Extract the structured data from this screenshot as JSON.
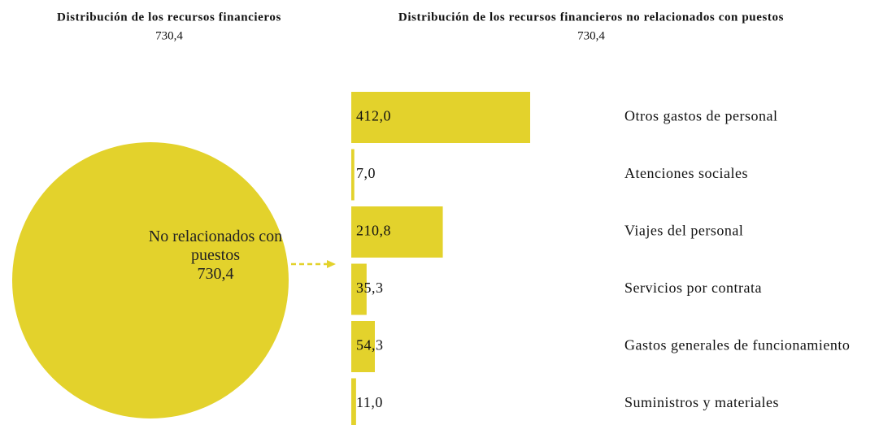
{
  "chart_data": [
    {
      "type": "pie",
      "title": "Distribución de los recursos financieros",
      "subtitle": "730,4",
      "categories": [
        "No relacionados con puestos"
      ],
      "values": [
        730.4
      ],
      "value_labels": [
        "730,4"
      ],
      "color": "#e3d22c"
    },
    {
      "type": "bar",
      "title": "Distribución de los recursos financieros no relacionados con puestos",
      "subtitle": "730,4",
      "categories": [
        "Otros gastos de personal",
        "Atenciones sociales",
        "Viajes del personal",
        "Servicios por contrata",
        "Gastos generales de funcionamiento",
        "Suministros y materiales"
      ],
      "values": [
        412.0,
        7.0,
        210.8,
        35.3,
        54.3,
        11.0
      ],
      "value_labels": [
        "412,0",
        "7,0",
        "210,8",
        "35,3",
        "54,3",
        "11,0"
      ],
      "color": "#e3d22c"
    }
  ]
}
